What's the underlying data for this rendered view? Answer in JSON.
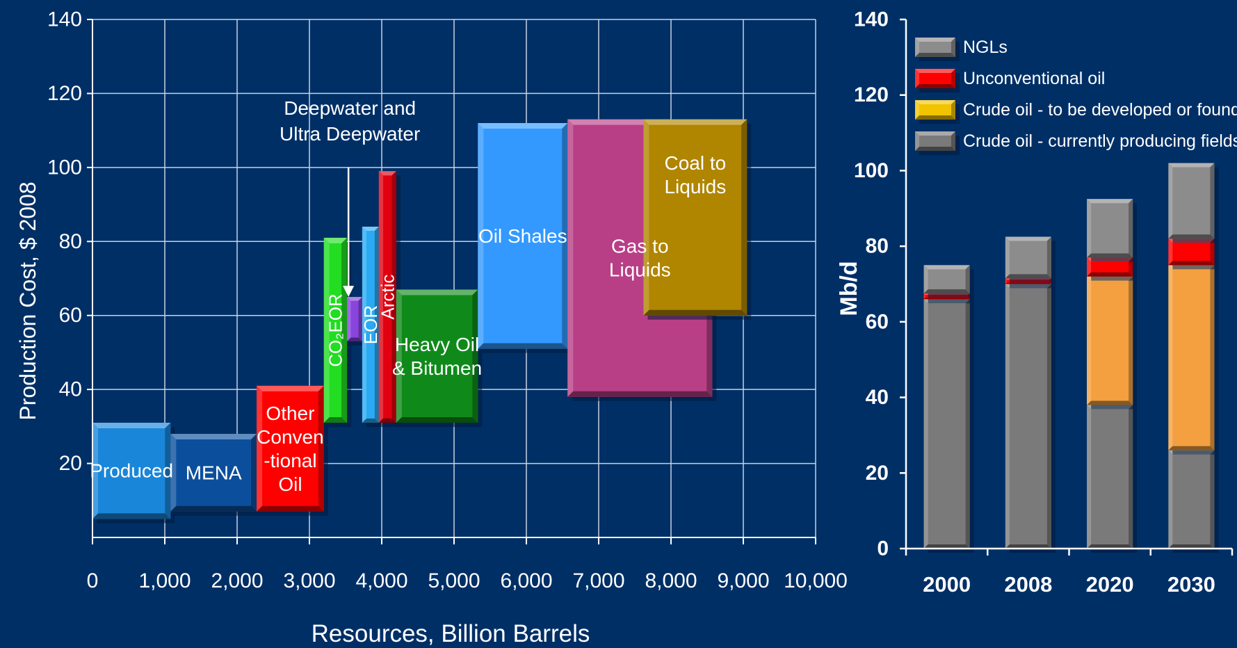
{
  "chart_data": [
    {
      "type": "bar",
      "subtype": "resource-cost-blocks",
      "xlabel": "Resources, Billion Barrels",
      "ylabel": "Production Cost, $ 2008",
      "xlim": [
        0,
        10000
      ],
      "ylim": [
        0,
        140
      ],
      "x_ticks": [
        "0",
        "1,000",
        "2,000",
        "3,000",
        "4,000",
        "5,000",
        "6,000",
        "7,000",
        "8,000",
        "9,000",
        "10,000"
      ],
      "y_ticks": [
        "20",
        "40",
        "60",
        "80",
        "100",
        "120",
        "140"
      ],
      "grid": true,
      "annotation": {
        "lines": [
          "Deepwater and",
          "Ultra Deepwater"
        ],
        "points_to": "Deepwater block",
        "arrow_x": 3540,
        "arrow_from_y": 100,
        "arrow_to_y": 65
      },
      "blocks": [
        {
          "label": [
            "Produced"
          ],
          "x0": 0,
          "x1": 1080,
          "y0": 5,
          "y1": 31,
          "color": "#1a86d9"
        },
        {
          "label": [
            "MENA"
          ],
          "x0": 1080,
          "x1": 2270,
          "y0": 7,
          "y1": 28,
          "color": "#0b4f9c"
        },
        {
          "label": [
            "Other",
            "Conven",
            "-tional",
            "Oil"
          ],
          "x0": 2270,
          "x1": 3200,
          "y0": 7,
          "y1": 41,
          "color": "#ff0000"
        },
        {
          "label": [
            "CO₂EOR"
          ],
          "vertical": true,
          "x0": 3200,
          "x1": 3520,
          "y0": 31,
          "y1": 81,
          "color": "#22dd22"
        },
        {
          "label": [
            ""
          ],
          "x0": 3520,
          "x1": 3730,
          "y0": 53,
          "y1": 65,
          "color": "#8844dd"
        },
        {
          "label": [
            "EOR"
          ],
          "vertical": true,
          "x0": 3730,
          "x1": 3960,
          "y0": 31,
          "y1": 84,
          "color": "#2aaaf2"
        },
        {
          "label": [
            "Arctic"
          ],
          "vertical": true,
          "x0": 3960,
          "x1": 4200,
          "y0": 31,
          "y1": 99,
          "color": "#e00010"
        },
        {
          "label": [
            "Heavy Oil",
            "& Bitumen"
          ],
          "x0": 4200,
          "x1": 5330,
          "y0": 31,
          "y1": 67,
          "color": "#0f8a1a"
        },
        {
          "label": [
            "Oil Shales"
          ],
          "x0": 5330,
          "x1": 6570,
          "y0": 51,
          "y1": 112,
          "color": "#3399ff"
        },
        {
          "label": [
            "Gas to",
            "Liquids"
          ],
          "x0": 6570,
          "x1": 8570,
          "y0": 38,
          "y1": 113,
          "color": "#b83f86"
        },
        {
          "label": [
            "Coal to",
            "Liquids"
          ],
          "x0": 7620,
          "x1": 9050,
          "y0": 60,
          "y1": 113,
          "color": "#b08500"
        }
      ]
    },
    {
      "type": "bar",
      "subtype": "stacked",
      "ylabel": "Mb/d",
      "ylim": [
        0,
        140
      ],
      "y_ticks": [
        "0",
        "20",
        "40",
        "60",
        "80",
        "100",
        "120",
        "140"
      ],
      "categories": [
        "2000",
        "2008",
        "2020",
        "2030"
      ],
      "legend_placement": "top",
      "series": [
        {
          "name": "Crude oil - currently producing fields",
          "color": "#7a7a7a",
          "values": [
            66,
            70,
            38,
            26
          ]
        },
        {
          "name": "Crude oil - to be developed or found",
          "color": "#f4a040",
          "values": [
            0,
            0,
            34,
            49
          ]
        },
        {
          "name": "Unconventional oil",
          "color": "#ff0000",
          "values": [
            1.5,
            1.5,
            5,
            7
          ]
        },
        {
          "name": "NGLs",
          "color": "#8c8c8c",
          "values": [
            7.5,
            11,
            15.5,
            20
          ]
        }
      ],
      "legend_order": [
        "NGLs",
        "Unconventional oil",
        "Crude oil - to be developed or found",
        "Crude oil - currently producing fields"
      ]
    }
  ]
}
